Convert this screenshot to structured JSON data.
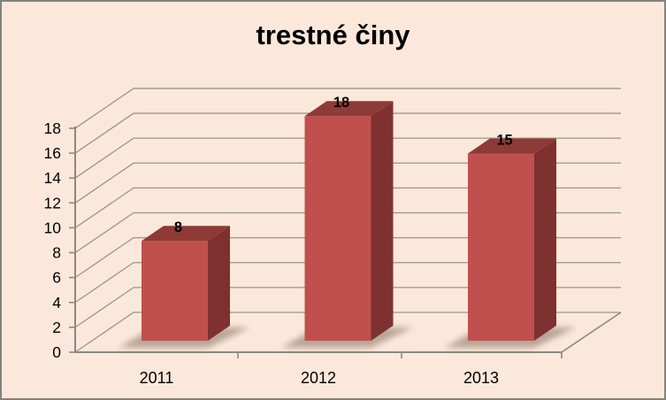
{
  "window": {
    "background_color": "#FCE8DB",
    "border_color": "#85827D"
  },
  "chart_data": {
    "type": "bar",
    "subtype": "3d-column",
    "title": "trestné činy",
    "categories": [
      "2011",
      "2012",
      "2013"
    ],
    "series": [
      {
        "name": "trestné činy",
        "values": [
          8,
          18,
          15
        ]
      }
    ],
    "data_labels": [
      "8",
      "18",
      "15"
    ],
    "xlabel": "",
    "ylabel": "",
    "ylim": [
      0,
      18
    ],
    "ytick_interval": 2,
    "ytick_labels": [
      "0",
      "2",
      "4",
      "6",
      "8",
      "10",
      "12",
      "14",
      "16",
      "18"
    ],
    "grid": true,
    "legend_position": "none",
    "colors": {
      "bar_front": "#C0504D",
      "bar_top": "#8E3A36",
      "bar_side": "#7E3130",
      "gridline": "#979590",
      "axis": "#8A8883",
      "tick_label": "#000000",
      "data_label": "#000000",
      "shadow": "#837060"
    }
  }
}
